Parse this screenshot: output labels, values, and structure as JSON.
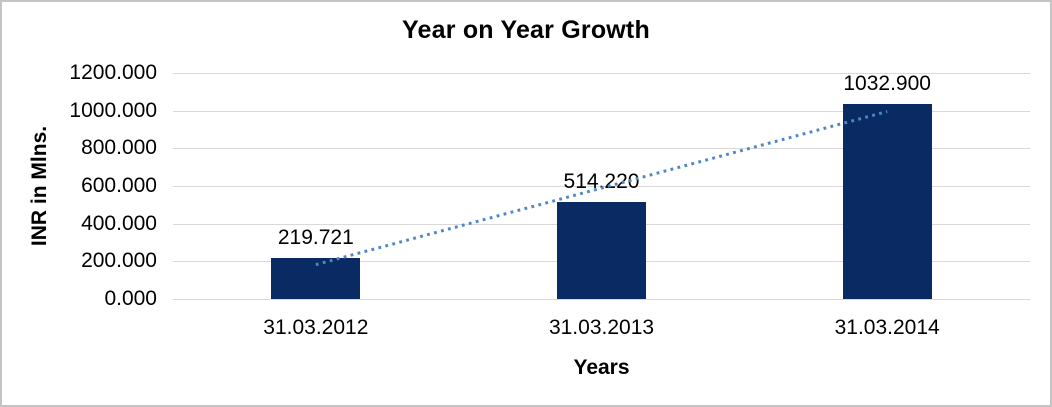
{
  "chart_data": {
    "type": "bar",
    "title": "Year on Year Growth",
    "xlabel": "Years",
    "ylabel": "INR in Mlns.",
    "categories": [
      "31.03.2012",
      "31.03.2013",
      "31.03.2014"
    ],
    "values": [
      219.721,
      514.22,
      1032.9
    ],
    "value_labels": [
      "219.721",
      "514.220",
      "1032.900"
    ],
    "y_ticks": [
      {
        "value": 0,
        "label": "0.000"
      },
      {
        "value": 200,
        "label": "200.000"
      },
      {
        "value": 400,
        "label": "400.000"
      },
      {
        "value": 600,
        "label": "600.000"
      },
      {
        "value": 800,
        "label": "800.000"
      },
      {
        "value": 1000,
        "label": "1000.000"
      },
      {
        "value": 1200,
        "label": "1200.000"
      }
    ],
    "ylim": [
      0,
      1200
    ],
    "grid": true,
    "legend": "none",
    "colors": {
      "bar": "#0a2a64",
      "trendline": "#4f86c6",
      "gridline": "#d9d9d9",
      "frame": "#c4c4c4",
      "text": "#000000"
    },
    "trendline": {
      "type": "linear",
      "style": "dotted"
    }
  }
}
